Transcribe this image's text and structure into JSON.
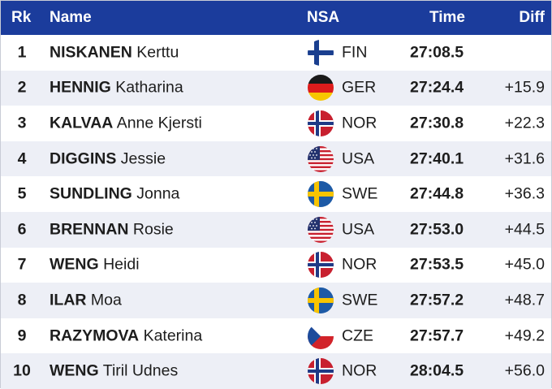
{
  "header": {
    "rk": "Rk",
    "name": "Name",
    "nsa": "NSA",
    "time": "Time",
    "diff": "Diff"
  },
  "colors": {
    "header_bg": "#1b3c9c",
    "alt_row_bg": "#edeff6"
  },
  "rows": [
    {
      "rk": "1",
      "surname": "NISKANEN",
      "given": "Kerttu",
      "flag": "fin-flag-icon",
      "nsa": "FIN",
      "time": "27:08.5",
      "diff": ""
    },
    {
      "rk": "2",
      "surname": "HENNIG",
      "given": "Katharina",
      "flag": "ger-flag-icon",
      "nsa": "GER",
      "time": "27:24.4",
      "diff": "+15.9"
    },
    {
      "rk": "3",
      "surname": "KALVAA",
      "given": "Anne Kjersti",
      "flag": "nor-flag-icon",
      "nsa": "NOR",
      "time": "27:30.8",
      "diff": "+22.3"
    },
    {
      "rk": "4",
      "surname": "DIGGINS",
      "given": "Jessie",
      "flag": "usa-flag-icon",
      "nsa": "USA",
      "time": "27:40.1",
      "diff": "+31.6"
    },
    {
      "rk": "5",
      "surname": "SUNDLING",
      "given": "Jonna",
      "flag": "swe-flag-icon",
      "nsa": "SWE",
      "time": "27:44.8",
      "diff": "+36.3"
    },
    {
      "rk": "6",
      "surname": "BRENNAN",
      "given": "Rosie",
      "flag": "usa-flag-icon",
      "nsa": "USA",
      "time": "27:53.0",
      "diff": "+44.5"
    },
    {
      "rk": "7",
      "surname": "WENG",
      "given": "Heidi",
      "flag": "nor-flag-icon",
      "nsa": "NOR",
      "time": "27:53.5",
      "diff": "+45.0"
    },
    {
      "rk": "8",
      "surname": "ILAR",
      "given": "Moa",
      "flag": "swe-flag-icon",
      "nsa": "SWE",
      "time": "27:57.2",
      "diff": "+48.7"
    },
    {
      "rk": "9",
      "surname": "RAZYMOVA",
      "given": "Katerina",
      "flag": "cze-flag-icon",
      "nsa": "CZE",
      "time": "27:57.7",
      "diff": "+49.2"
    },
    {
      "rk": "10",
      "surname": "WENG",
      "given": "Tiril Udnes",
      "flag": "nor-flag-icon",
      "nsa": "NOR",
      "time": "28:04.5",
      "diff": "+56.0"
    }
  ]
}
